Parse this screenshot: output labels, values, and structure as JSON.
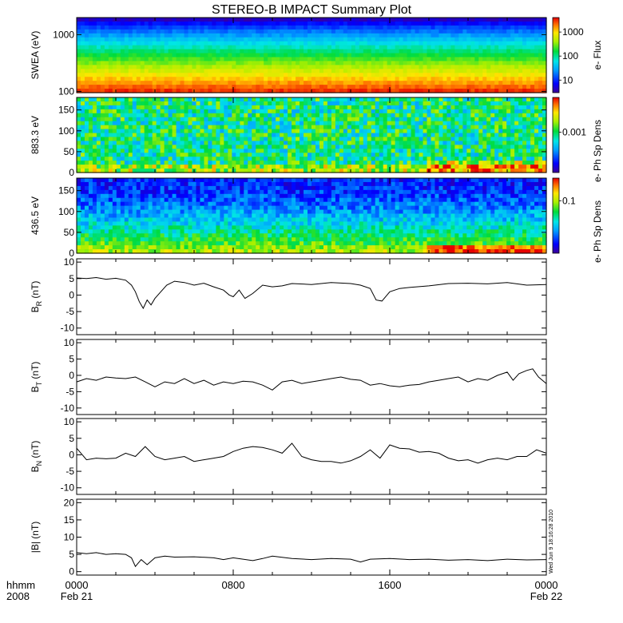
{
  "title": "STEREO-B IMPACT Summary Plot",
  "stamp": "Wed Jun  9 18:16:28 2010",
  "colors": {
    "line": "#000000",
    "frame": "#000000",
    "background": "#ffffff"
  },
  "time_axis": {
    "corner_top": "hhmm",
    "corner_bottom": "2008",
    "ticks": [
      {
        "hours": 0,
        "hhmm": "0000",
        "date": "Feb 21"
      },
      {
        "hours": 8,
        "hhmm": "0800",
        "date": ""
      },
      {
        "hours": 16,
        "hhmm": "1600",
        "date": ""
      },
      {
        "hours": 24,
        "hhmm": "0000",
        "date": "Feb 22"
      }
    ],
    "range_hours": [
      0,
      24
    ]
  },
  "chart_data": [
    {
      "type": "heatmap",
      "ylabel": "SWEA (eV)",
      "yscale": "log",
      "ylim": [
        95,
        2000
      ],
      "yticks": [
        {
          "v": 100,
          "label": "100"
        },
        {
          "v": 1000,
          "label": "1000"
        }
      ],
      "colorbar": {
        "label": "e- Flux",
        "scale": "log",
        "range": [
          3,
          4000
        ],
        "ticks": [
          {
            "v": 10,
            "label": "10"
          },
          {
            "v": 100,
            "label": "100"
          },
          {
            "v": 1000,
            "label": "1000"
          }
        ]
      }
    },
    {
      "type": "heatmap",
      "ylabel": "883.3 eV",
      "ylim": [
        0,
        180
      ],
      "yticks": [
        {
          "v": 0,
          "label": "0"
        },
        {
          "v": 50,
          "label": "50"
        },
        {
          "v": 100,
          "label": "100"
        },
        {
          "v": 150,
          "label": "150"
        }
      ],
      "colorbar": {
        "label": "e- Ph Sp Dens",
        "scale": "log",
        "range": [
          0.0002,
          0.004
        ],
        "ticks": [
          {
            "v": 0.001,
            "label": "0.001"
          }
        ]
      }
    },
    {
      "type": "heatmap",
      "ylabel": "436.5 eV",
      "ylim": [
        0,
        180
      ],
      "yticks": [
        {
          "v": 0,
          "label": "0"
        },
        {
          "v": 50,
          "label": "50"
        },
        {
          "v": 100,
          "label": "100"
        },
        {
          "v": 150,
          "label": "150"
        }
      ],
      "colorbar": {
        "label": "e- Ph Sp Dens",
        "scale": "log",
        "range": [
          0.02,
          0.2
        ],
        "ticks": [
          {
            "v": 0.1,
            "label": "0.1"
          }
        ]
      }
    },
    {
      "type": "line",
      "ylabel": "BR (nT)",
      "ylabel_base": "B",
      "ylabel_sub": "R",
      "ylabel_unit": " (nT)",
      "ylim": [
        -12,
        11
      ],
      "yticks": [
        {
          "v": -10,
          "label": "-10"
        },
        {
          "v": -5,
          "label": "-5"
        },
        {
          "v": 0,
          "label": "0"
        },
        {
          "v": 5,
          "label": "5"
        },
        {
          "v": 10,
          "label": "10"
        }
      ],
      "x_hours": [
        0,
        0.5,
        1,
        1.5,
        2,
        2.5,
        2.8,
        3,
        3.2,
        3.4,
        3.6,
        3.8,
        4,
        4.3,
        4.6,
        5,
        5.5,
        6,
        6.5,
        7,
        7.5,
        7.8,
        8,
        8.3,
        8.6,
        9,
        9.5,
        10,
        10.5,
        11,
        12,
        13,
        14,
        14.5,
        15,
        15.3,
        15.6,
        16,
        16.5,
        17,
        18,
        19,
        20,
        21,
        22,
        23,
        24
      ],
      "values": [
        5.2,
        5.0,
        5.3,
        4.8,
        5.1,
        4.5,
        3.0,
        1.0,
        -2.0,
        -4.0,
        -1.5,
        -3.0,
        -1.0,
        1.0,
        3.0,
        4.2,
        3.8,
        3.0,
        3.6,
        2.5,
        1.5,
        0.0,
        -0.5,
        1.5,
        -1.0,
        0.5,
        3.0,
        2.5,
        2.8,
        3.5,
        3.2,
        3.8,
        3.5,
        3.0,
        2.0,
        -1.5,
        -1.8,
        1.0,
        2.0,
        2.3,
        2.8,
        3.5,
        3.6,
        3.4,
        3.8,
        3.0,
        3.2
      ]
    },
    {
      "type": "line",
      "ylabel": "BT (nT)",
      "ylabel_base": "B",
      "ylabel_sub": "T",
      "ylabel_unit": " (nT)",
      "ylim": [
        -12,
        11
      ],
      "yticks": [
        {
          "v": -10,
          "label": "-10"
        },
        {
          "v": -5,
          "label": "-5"
        },
        {
          "v": 0,
          "label": "0"
        },
        {
          "v": 5,
          "label": "5"
        },
        {
          "v": 10,
          "label": "10"
        }
      ],
      "x_hours": [
        0,
        0.5,
        1,
        1.5,
        2,
        2.5,
        3,
        3.5,
        4,
        4.5,
        5,
        5.5,
        6,
        6.5,
        7,
        7.5,
        8,
        8.5,
        9,
        9.5,
        10,
        10.5,
        11,
        11.5,
        12,
        12.5,
        13,
        13.5,
        14,
        14.5,
        15,
        15.5,
        16,
        16.5,
        17,
        17.5,
        18,
        18.5,
        19,
        19.5,
        20,
        20.5,
        21,
        21.5,
        22,
        22.3,
        22.6,
        23,
        23.3,
        23.6,
        24
      ],
      "values": [
        -2.0,
        -1.0,
        -1.5,
        -0.5,
        -0.8,
        -1.0,
        -0.5,
        -2.0,
        -3.5,
        -2.0,
        -2.5,
        -1.0,
        -2.5,
        -1.5,
        -3.0,
        -2.0,
        -2.5,
        -1.8,
        -2.0,
        -3.0,
        -4.5,
        -2.0,
        -1.5,
        -2.5,
        -2.0,
        -1.5,
        -1.0,
        -0.5,
        -1.2,
        -1.5,
        -3.0,
        -2.5,
        -3.2,
        -3.5,
        -3.0,
        -2.8,
        -2.0,
        -1.5,
        -1.0,
        -0.5,
        -2.0,
        -1.0,
        -1.5,
        0.0,
        1.0,
        -1.5,
        0.5,
        1.5,
        2.0,
        -0.5,
        -2.5
      ]
    },
    {
      "type": "line",
      "ylabel": "BN (nT)",
      "ylabel_base": "B",
      "ylabel_sub": "N",
      "ylabel_unit": " (nT)",
      "ylim": [
        -12,
        11
      ],
      "yticks": [
        {
          "v": -10,
          "label": "-10"
        },
        {
          "v": -5,
          "label": "-5"
        },
        {
          "v": 0,
          "label": "0"
        },
        {
          "v": 5,
          "label": "5"
        },
        {
          "v": 10,
          "label": "10"
        }
      ],
      "x_hours": [
        0,
        0.5,
        1,
        1.5,
        2,
        2.5,
        3,
        3.5,
        4,
        4.5,
        5,
        5.5,
        6,
        6.5,
        7,
        7.5,
        8,
        8.5,
        9,
        9.5,
        10,
        10.5,
        11,
        11.5,
        12,
        12.5,
        13,
        13.5,
        14,
        14.5,
        15,
        15.5,
        16,
        16.5,
        17,
        17.5,
        18,
        18.5,
        19,
        19.5,
        20,
        20.5,
        21,
        21.5,
        22,
        22.5,
        23,
        23.5,
        24
      ],
      "values": [
        2.0,
        -1.5,
        -1.0,
        -1.2,
        -1.0,
        0.5,
        -0.5,
        2.5,
        -0.5,
        -1.5,
        -1.0,
        -0.5,
        -2.0,
        -1.5,
        -1.0,
        -0.5,
        1.0,
        2.0,
        2.5,
        2.2,
        1.5,
        0.5,
        3.5,
        -0.5,
        -1.5,
        -2.0,
        -2.0,
        -2.5,
        -1.8,
        -0.5,
        1.5,
        -1.0,
        3.0,
        2.0,
        1.8,
        0.8,
        1.0,
        0.5,
        -1.0,
        -1.8,
        -1.5,
        -2.5,
        -1.5,
        -1.0,
        -1.5,
        -0.5,
        -0.5,
        1.5,
        0.5
      ]
    },
    {
      "type": "line",
      "ylabel": "|B| (nT)",
      "ylabel_base": "|B|",
      "ylabel_sub": "",
      "ylabel_unit": " (nT)",
      "ylim": [
        -1,
        21
      ],
      "yticks": [
        {
          "v": 0,
          "label": "0"
        },
        {
          "v": 5,
          "label": "5"
        },
        {
          "v": 10,
          "label": "10"
        },
        {
          "v": 15,
          "label": "15"
        },
        {
          "v": 20,
          "label": "20"
        }
      ],
      "x_hours": [
        0,
        0.5,
        1,
        1.5,
        2,
        2.5,
        2.8,
        3,
        3.3,
        3.6,
        4,
        4.5,
        5,
        6,
        7,
        7.5,
        8,
        9,
        9.5,
        10,
        11,
        12,
        13,
        14,
        14.5,
        15,
        16,
        17,
        18,
        19,
        20,
        21,
        22,
        23,
        24
      ],
      "values": [
        5.5,
        5.2,
        5.5,
        5.0,
        5.2,
        5.0,
        4.0,
        1.5,
        3.5,
        2.0,
        4.0,
        4.5,
        4.2,
        4.3,
        4.0,
        3.5,
        4.0,
        3.2,
        3.8,
        4.5,
        3.8,
        3.5,
        3.8,
        3.6,
        2.8,
        3.6,
        3.8,
        3.5,
        3.6,
        3.3,
        3.5,
        3.2,
        3.6,
        3.4,
        3.5
      ]
    }
  ]
}
